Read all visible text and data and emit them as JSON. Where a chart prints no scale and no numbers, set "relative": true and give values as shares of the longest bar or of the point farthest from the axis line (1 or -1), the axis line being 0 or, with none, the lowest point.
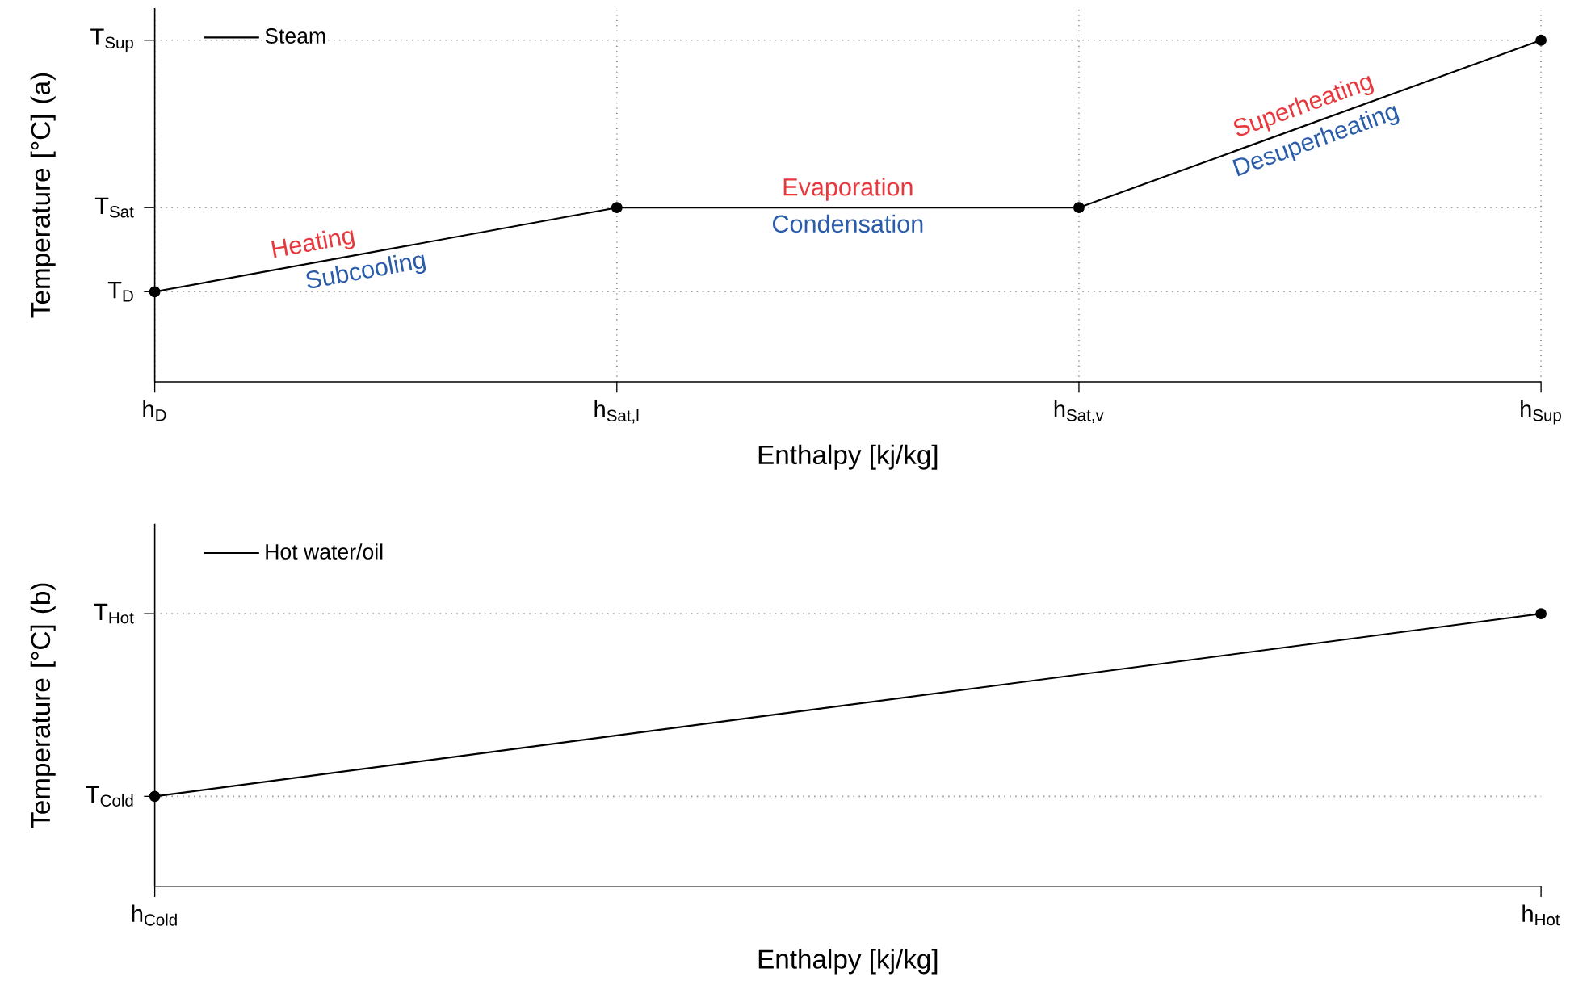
{
  "chart_data": [
    {
      "type": "line",
      "xlabel": "Enthalpy [kj/kg]",
      "ylabel": "Temperature [°C] (a)",
      "relative": true,
      "categories": [
        "h$_{D}$",
        "h$_{Sat,l}$",
        "h$_{Sat,v}$",
        "h$_{Sup}$"
      ],
      "series": [
        {
          "name": "Steam",
          "color": "#000000",
          "values": [
            0.264,
            0.51,
            0.51,
            1
          ]
        }
      ],
      "ref_lines": [
        {
          "axis": "y",
          "value": 0.264,
          "label": "T$_{D}$",
          "line_style": "dotted",
          "color": "#999999"
        },
        {
          "axis": "y",
          "value": 0.51,
          "label": "T$_{Sat}$",
          "line_style": "dotted",
          "color": "#999999"
        },
        {
          "axis": "y",
          "value": 1,
          "label": "T$_{Sup}$",
          "line_style": "dotted",
          "color": "#999999"
        }
      ],
      "grid": "x",
      "legend": "top left",
      "marker": "circle",
      "line_style": "solid",
      "annotations": [
        "Heating",
        "Subcooling",
        "Evaporation",
        "Condensation",
        "Superheating",
        "Desuperheating"
      ]
    },
    {
      "type": "line",
      "xlabel": "Enthalpy [kj/kg]",
      "ylabel": "Temperature [°C] (b)",
      "relative": true,
      "categories": [
        "h$_{Cold}$",
        "h$_{Hot}$"
      ],
      "series": [
        {
          "name": "Hot water/oil",
          "color": "#000000",
          "values": [
            0.33,
            1
          ]
        }
      ],
      "ref_lines": [
        {
          "axis": "y",
          "value": 0.33,
          "label": "T$_{Cold}$",
          "line_style": "dotted",
          "color": "#999999"
        },
        {
          "axis": "y",
          "value": 1,
          "label": "T$_{Hot}$",
          "line_style": "dotted",
          "color": "#999999"
        }
      ],
      "legend": "top left",
      "marker": "circle",
      "line_style": "solid"
    }
  ]
}
